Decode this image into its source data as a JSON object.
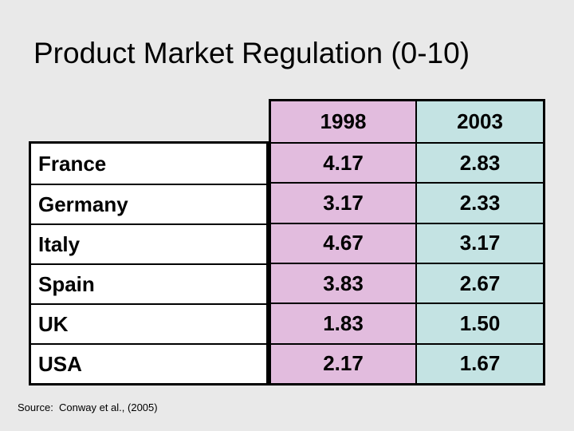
{
  "slide": {
    "title": "Product Market Regulation (0-10)",
    "source": "Source:  Conway et al., (2005)"
  },
  "table": {
    "col_headers": [
      "1998",
      "2003"
    ],
    "rows": [
      {
        "label": "France",
        "v1998": "4.17",
        "v2003": "2.83"
      },
      {
        "label": "Germany",
        "v1998": "3.17",
        "v2003": "2.33"
      },
      {
        "label": "Italy",
        "v1998": "4.67",
        "v2003": "3.17"
      },
      {
        "label": "Spain",
        "v1998": "3.83",
        "v2003": "2.67"
      },
      {
        "label": "UK",
        "v1998": "1.83",
        "v2003": "1.50"
      },
      {
        "label": "USA",
        "v1998": "2.17",
        "v2003": "1.67"
      }
    ]
  },
  "colors": {
    "slide_background": "#e9e9e9",
    "col_1998_background": "#e2bcde",
    "col_2003_background": "#c4e3e3",
    "label_cell_background": "#ffffff",
    "border": "#000000",
    "text": "#000000"
  },
  "chart_data": {
    "type": "table",
    "title": "Product Market Regulation (0-10)",
    "value_scale": "0-10",
    "categories": [
      "France",
      "Germany",
      "Italy",
      "Spain",
      "UK",
      "USA"
    ],
    "series": [
      {
        "name": "1998",
        "values": [
          4.17,
          3.17,
          4.67,
          3.83,
          1.83,
          2.17
        ]
      },
      {
        "name": "2003",
        "values": [
          2.83,
          2.33,
          3.17,
          2.67,
          1.5,
          1.67
        ]
      }
    ],
    "source": "Source:  Conway et al., (2005)"
  }
}
